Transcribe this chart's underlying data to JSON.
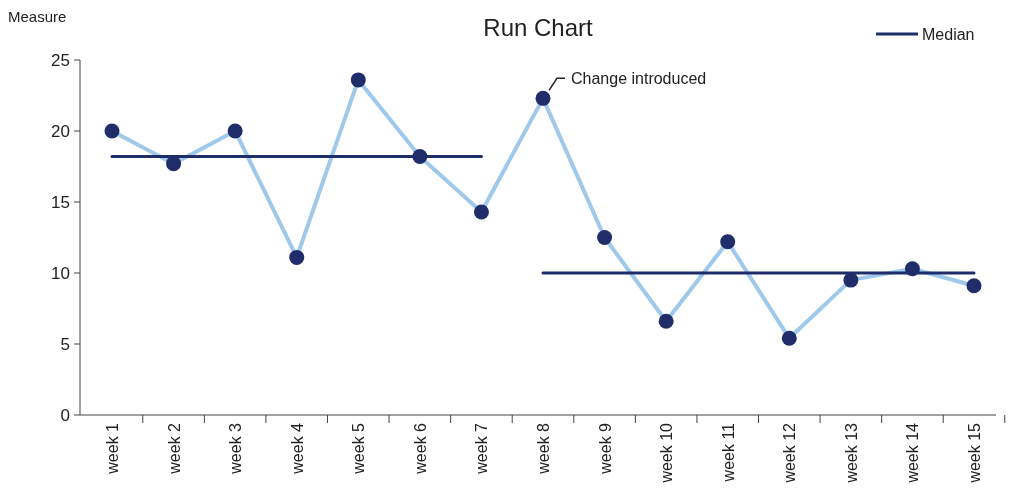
{
  "chart_data": {
    "type": "line",
    "title": "Run Chart",
    "ylabel": "Measure",
    "categories": [
      "week 1",
      "week 2",
      "week 3",
      "week 4",
      "week 5",
      "week 6",
      "week 7",
      "week 8",
      "week 9",
      "week 10",
      "week 11",
      "week 12",
      "week 13",
      "week 14",
      "week 15"
    ],
    "series": [
      {
        "color": "#9fc9eb",
        "values": [
          20,
          17.7,
          20,
          11.1,
          23.6,
          18.2,
          14.3,
          22.3,
          12.5,
          6.6,
          12.2,
          5.4,
          9.5,
          10.3,
          9.1
        ],
        "marker": "circle",
        "colors": [
          "#1f2d6b",
          "#1f2d6b",
          "#1f2d6b",
          "#1f2d6b",
          "#1f2d6b",
          "#1f2d6b",
          "#1f2d6b",
          "#1f2d6b",
          "#1f2d6b",
          "#1f2d6b",
          "#1f2d6b",
          "#1f2d6b",
          "#1f2d6b",
          "#1f2d6b",
          "#1f2d6b"
        ]
      },
      {
        "name": "Median",
        "color": "#1f2d6b",
        "values": [
          18.2,
          18.2,
          18.2,
          18.2,
          18.2,
          18.2,
          18.2,
          null,
          null,
          null,
          null,
          null,
          null,
          null,
          null
        ],
        "marker": "none"
      },
      {
        "color": "#1f2d6b",
        "values": [
          null,
          null,
          null,
          null,
          null,
          null,
          null,
          10,
          10,
          10,
          10,
          10,
          10,
          10,
          10
        ],
        "marker": "none"
      }
    ],
    "annotations": [
      {
        "text": "Change introduced",
        "x": "week 8",
        "y": 22.3
      }
    ],
    "ylim": [
      0,
      25
    ],
    "yticks": [
      0,
      5,
      10,
      15,
      20,
      25
    ],
    "grid": false,
    "legend": "top right",
    "line_style": "solid"
  }
}
